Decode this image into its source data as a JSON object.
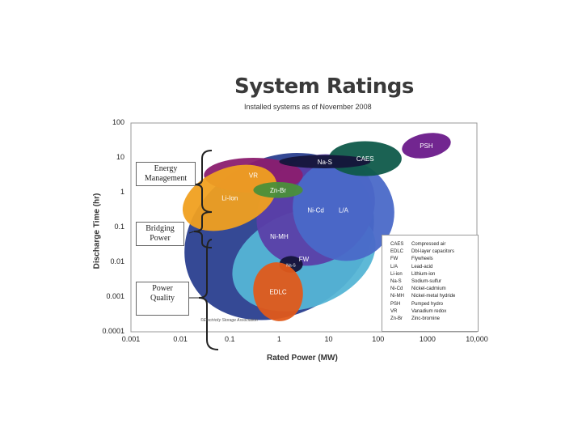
{
  "chart_data": {
    "type": "scatter",
    "title": "System Ratings",
    "subtitle": "Installed systems as of November 2008",
    "xlabel": "Rated Power (MW)",
    "ylabel": "Discharge Time (hr)",
    "x_scale": "log",
    "y_scale": "log",
    "xlim": [
      0.001,
      10000
    ],
    "ylim": [
      0.0001,
      100
    ],
    "x_ticks": [
      "0.001",
      "0.01",
      "0.1",
      "1",
      "10",
      "100",
      "1000",
      "10,000"
    ],
    "y_ticks": [
      "100",
      "10",
      "1",
      "0.1",
      "0.01",
      "0.001",
      "0.0001"
    ],
    "regions": [
      {
        "name": "Ni-MH",
        "color": "#2a3f8f",
        "x_range": [
          0.01,
          100
        ],
        "y_range": [
          0.0003,
          10
        ]
      },
      {
        "name": "FW",
        "color": "#55b5d5",
        "x_range": [
          0.1,
          100
        ],
        "y_range": [
          0.0005,
          0.3
        ]
      },
      {
        "name": "Ni-Cd",
        "color": "#5b3fa8",
        "x_range": [
          0.3,
          100
        ],
        "y_range": [
          0.01,
          10
        ]
      },
      {
        "name": "L/A",
        "color": "#4a69c8",
        "x_range": [
          2,
          200
        ],
        "y_range": [
          0.01,
          10
        ]
      },
      {
        "name": "VR",
        "color": "#8b1d6f",
        "x_range": [
          0.03,
          3
        ],
        "y_range": [
          1,
          10
        ]
      },
      {
        "name": "Li-Ion",
        "color": "#f0a020",
        "x_range": [
          0.01,
          1
        ],
        "y_range": [
          0.1,
          5
        ]
      },
      {
        "name": "Zn-Br",
        "color": "#4a8f3a",
        "x_range": [
          0.3,
          3
        ],
        "y_range": [
          0.7,
          2
        ]
      },
      {
        "name": "CAES",
        "color": "#0f5a4a",
        "x_range": [
          10,
          300
        ],
        "y_range": [
          3,
          30
        ]
      },
      {
        "name": "Na-S",
        "color": "#15153a",
        "x_range": [
          1,
          70
        ],
        "y_range": [
          5,
          12
        ]
      },
      {
        "name": "Na-S",
        "color": "#15153a",
        "x_range": [
          1,
          3
        ],
        "y_range": [
          0.005,
          0.015
        ]
      },
      {
        "name": "EDLC",
        "color": "#e05a1a",
        "x_range": [
          0.3,
          3
        ],
        "y_range": [
          0.0002,
          0.01
        ]
      },
      {
        "name": "PSH",
        "color": "#6a1a8a",
        "x_range": [
          300,
          3000
        ],
        "y_range": [
          10,
          50
        ]
      }
    ]
  },
  "callouts": {
    "energy": [
      "Energy",
      "Management"
    ],
    "bridging": [
      "Bridging",
      "Power"
    ],
    "quality": [
      "Power",
      "Quality"
    ]
  },
  "legend": [
    {
      "abbr": "CAES",
      "desc": "Compressed air"
    },
    {
      "abbr": "EDLC",
      "desc": "Dbl-layer capacitors"
    },
    {
      "abbr": "FW",
      "desc": "Flywheels"
    },
    {
      "abbr": "L/A",
      "desc": "Lead-acid"
    },
    {
      "abbr": "Li-ion",
      "desc": "Lithium-ion"
    },
    {
      "abbr": "Na-S",
      "desc": "Sodium-sulfur"
    },
    {
      "abbr": "Ni-Cd",
      "desc": "Nickel-cadmium"
    },
    {
      "abbr": "Ni-MH",
      "desc": "Nickel-metal hydride"
    },
    {
      "abbr": "PSH",
      "desc": "Pumped hydro"
    },
    {
      "abbr": "VR",
      "desc": "Vanadium redox"
    },
    {
      "abbr": "Zn-Br",
      "desc": "Zinc-bromine"
    }
  ],
  "source": "©Electricity Storage Association"
}
